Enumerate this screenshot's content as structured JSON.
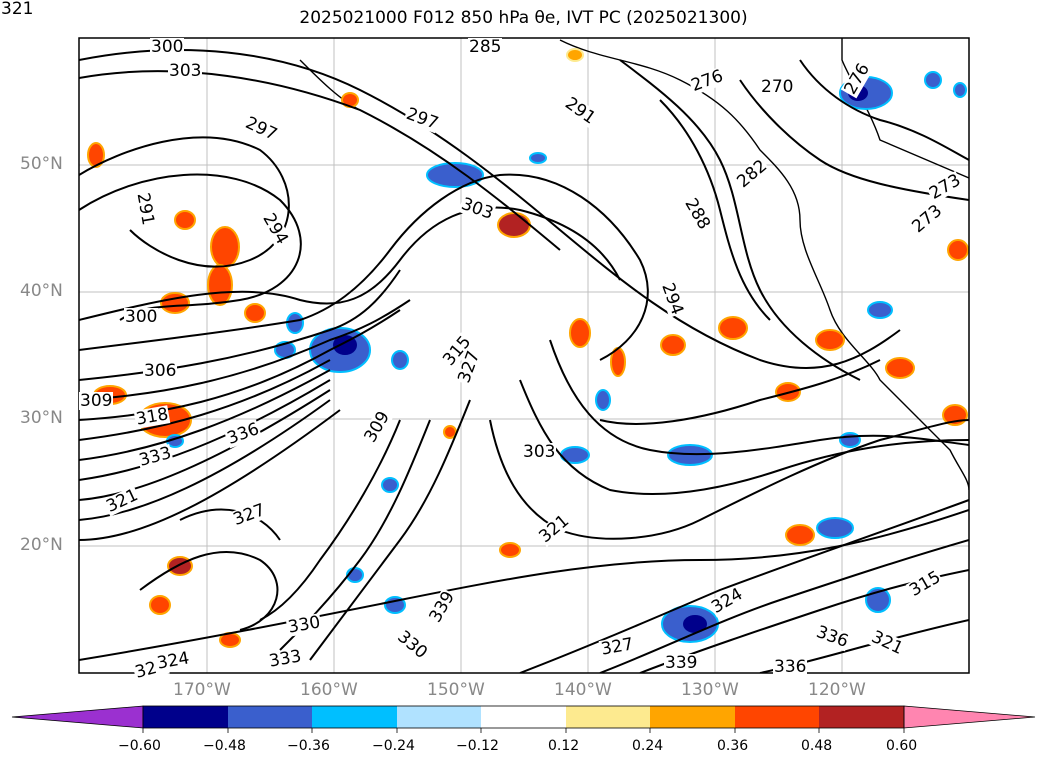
{
  "title": "2025021000 F012 850 hPa θe, IVT PC (2025021300)",
  "map": {
    "latitude_labels": [
      "50°N",
      "40°N",
      "30°N",
      "20°N"
    ],
    "longitude_labels": [
      "170°W",
      "160°W",
      "150°W",
      "140°W",
      "130°W",
      "120°W"
    ],
    "contour_labels": [
      "300",
      "303",
      "297",
      "291",
      "294",
      "300",
      "306",
      "318",
      "309",
      "336",
      "333",
      "327",
      "324",
      "321",
      "285",
      "297",
      "291",
      "303",
      "288",
      "294",
      "315",
      "309",
      "303",
      "321",
      "327",
      "324",
      "276",
      "270",
      "273",
      "282",
      "276",
      "273",
      "330",
      "333",
      "336",
      "339",
      "324",
      "321",
      "336",
      "339",
      "330",
      "327",
      "315",
      "321"
    ]
  },
  "colorbar": {
    "ticks": [
      "−0.60",
      "−0.48",
      "−0.36",
      "−0.24",
      "−0.12",
      "0.12",
      "0.24",
      "0.36",
      "0.48",
      "0.60"
    ],
    "colors": [
      "#9b30d0",
      "#00008b",
      "#3a5fcd",
      "#00bfff",
      "#b0e2ff",
      "#ffffff",
      "#fdea8f",
      "#ffa500",
      "#ff4500",
      "#b22222",
      "#ff85b0"
    ]
  }
}
